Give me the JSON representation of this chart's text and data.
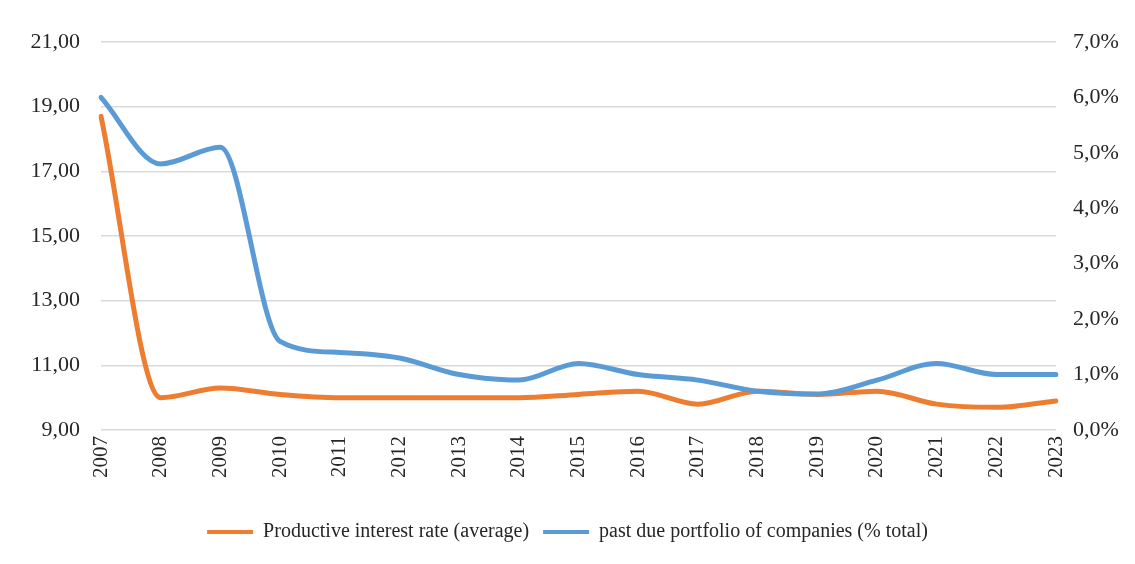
{
  "chart_data": {
    "type": "line",
    "categories": [
      "2007",
      "2008",
      "2009",
      "2010",
      "2011",
      "2012",
      "2013",
      "2014",
      "2015",
      "2016",
      "2017",
      "2018",
      "2019",
      "2020",
      "2021",
      "2022",
      "2023"
    ],
    "series": [
      {
        "name": "Productive interest rate (average)",
        "color": "#ed7d31",
        "values": [
          18.7,
          10.0,
          10.3,
          10.1,
          10.0,
          10.0,
          10.0,
          10.0,
          10.1,
          10.2,
          9.8,
          10.2,
          10.1,
          10.2,
          9.8,
          9.7,
          9.9
        ]
      },
      {
        "name": "past due portfolio of companies (% total)",
        "color": "#5b9bd5",
        "axis": "y2",
        "values": [
          6.0,
          4.8,
          5.1,
          1.6,
          1.4,
          1.3,
          1.0,
          0.9,
          1.2,
          1.0,
          0.9,
          0.7,
          0.65,
          0.9,
          1.2,
          1.0,
          1.0
        ]
      }
    ],
    "ylim": [
      9,
      21
    ],
    "yticks": [
      {
        "value": 9,
        "label": "9,00"
      },
      {
        "value": 11,
        "label": "11,00"
      },
      {
        "value": 13,
        "label": "13,00"
      },
      {
        "value": 15,
        "label": "15,00"
      },
      {
        "value": 17,
        "label": "17,00"
      },
      {
        "value": 19,
        "label": "19,00"
      },
      {
        "value": 21,
        "label": "21,00"
      }
    ],
    "y2lim": [
      0,
      7
    ],
    "y2ticks": [
      {
        "value": 0,
        "label": "0,0%"
      },
      {
        "value": 1,
        "label": "1,0%"
      },
      {
        "value": 2,
        "label": "2,0%"
      },
      {
        "value": 3,
        "label": "3,0%"
      },
      {
        "value": 4,
        "label": "4,0%"
      },
      {
        "value": 5,
        "label": "5,0%"
      },
      {
        "value": 6,
        "label": "6,0%"
      },
      {
        "value": 7,
        "label": "7,0%"
      }
    ],
    "grid": "y",
    "legend": "bottom"
  }
}
